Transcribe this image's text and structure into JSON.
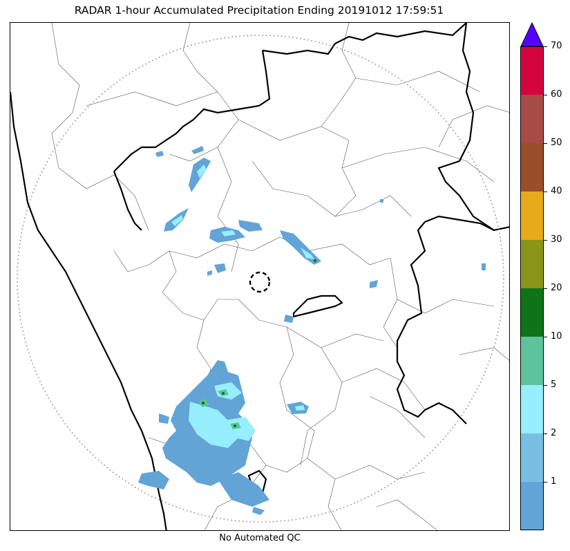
{
  "title": "RADAR 1-hour Accumulated Precipitation Ending 20191012 17:59:51",
  "footer": "No Automated QC",
  "colorbar": {
    "ticks": [
      "1",
      "2",
      "5",
      "10",
      "20",
      "30",
      "40",
      "50",
      "60",
      "70"
    ],
    "extend_color": "#5400ff",
    "colors": [
      "#62a4d6",
      "#79bfe3",
      "#96eeff",
      "#5dc39d",
      "#0d7419",
      "#8a961a",
      "#e6aa1a",
      "#9b4f29",
      "#a64b45",
      "#d5043f"
    ]
  },
  "map": {
    "range_ring": "dotted",
    "radar_site": "dashed-circle"
  }
}
